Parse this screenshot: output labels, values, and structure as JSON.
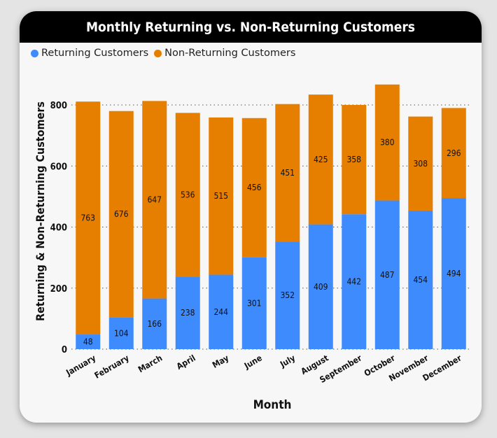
{
  "colors": {
    "returning": "#3d8bfd",
    "non_returning": "#e67e00",
    "title_bg": "#000000",
    "card_bg": "#f7f7f7"
  },
  "legend": {
    "returning": "Returning Customers",
    "non_returning": "Non-Returning Customers"
  },
  "chart_data": {
    "type": "bar",
    "stacked": true,
    "title": "Monthly Returning vs. Non-Returning Customers",
    "xlabel": "Month",
    "ylabel": "Returning & Non-Returning Customers",
    "categories": [
      "January",
      "February",
      "March",
      "April",
      "May",
      "June",
      "July",
      "August",
      "September",
      "October",
      "November",
      "December"
    ],
    "series": [
      {
        "name": "Returning Customers",
        "values": [
          48,
          104,
          166,
          238,
          244,
          301,
          352,
          409,
          442,
          487,
          454,
          494
        ]
      },
      {
        "name": "Non-Returning Customers",
        "values": [
          763,
          676,
          647,
          536,
          515,
          456,
          451,
          425,
          358,
          380,
          308,
          296
        ]
      }
    ],
    "yticks": [
      0,
      200,
      400,
      600,
      800
    ],
    "ylim": [
      0,
      880
    ],
    "grid": true,
    "legend_position": "top-left"
  }
}
